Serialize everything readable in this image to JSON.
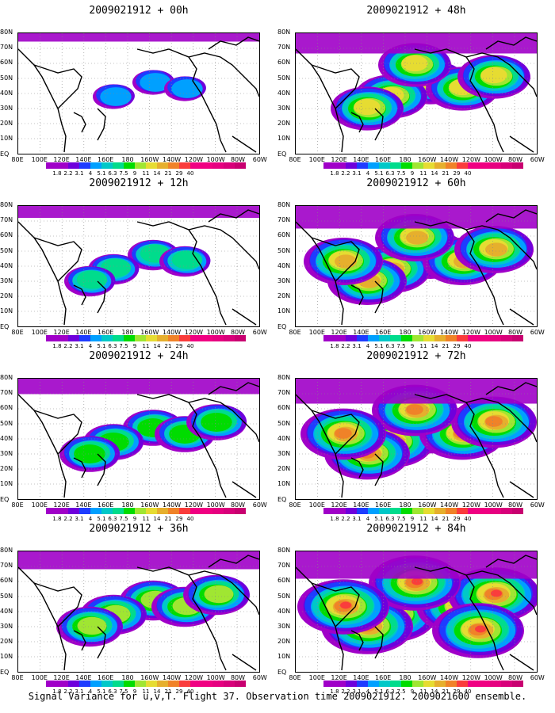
{
  "panels": [
    {
      "title": "2009021912 + 00h",
      "level": 0.15
    },
    {
      "title": "2009021912 + 48h",
      "level": 0.65
    },
    {
      "title": "2009021912 + 12h",
      "level": 0.3
    },
    {
      "title": "2009021912 + 60h",
      "level": 0.75
    },
    {
      "title": "2009021912 + 24h",
      "level": 0.45
    },
    {
      "title": "2009021912 + 72h",
      "level": 0.85
    },
    {
      "title": "2009021912 + 36h",
      "level": 0.55
    },
    {
      "title": "2009021912 + 84h",
      "level": 0.95
    }
  ],
  "lat_labels": [
    "80N",
    "70N",
    "60N",
    "50N",
    "40N",
    "30N",
    "20N",
    "10N",
    "EQ"
  ],
  "lon_labels": [
    "80E",
    "100E",
    "120E",
    "140E",
    "160E",
    "180",
    "160W",
    "140W",
    "120W",
    "100W",
    "80W",
    "60W"
  ],
  "colorbar": {
    "labels": [
      "1.8",
      "2.2",
      "3.1",
      "4",
      "5.1",
      "6.3",
      "7.5",
      "9",
      "11",
      "14",
      "21",
      "29",
      "40"
    ],
    "colors": [
      "#a000c8",
      "#6e00dc",
      "#1e3cff",
      "#00a0ff",
      "#00c8c8",
      "#00dc8c",
      "#00dc00",
      "#a0e632",
      "#e6dc32",
      "#e6af2d",
      "#f08228",
      "#fa3c3c",
      "#f00082"
    ]
  },
  "caption": "Signal Variance for u,v,T. Flight 37. Observation time 2009021912. 2009021600 ensemble."
}
